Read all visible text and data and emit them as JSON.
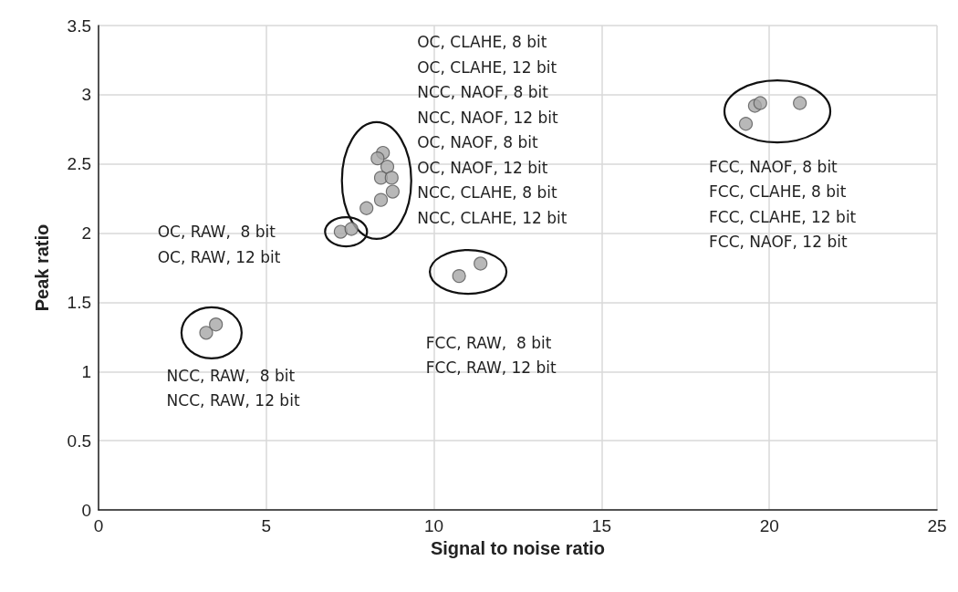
{
  "chart_data": {
    "type": "scatter",
    "xlabel": "Signal to noise ratio",
    "ylabel": "Peak ratio",
    "x": [
      3.21,
      3.5,
      7.22,
      7.54,
      8.48,
      8.32,
      8.61,
      8.42,
      8.74,
      8.77,
      8.42,
      7.99,
      10.75,
      11.39,
      19.3,
      19.57,
      19.73,
      20.91
    ],
    "values": [
      1.28,
      1.34,
      2.01,
      2.03,
      2.58,
      2.54,
      2.48,
      2.4,
      2.4,
      2.3,
      2.24,
      2.18,
      1.69,
      1.78,
      2.79,
      2.92,
      2.94,
      2.94
    ],
    "color": "#a6a6a6",
    "marker": "circle",
    "xlim": [
      0,
      25
    ],
    "xticks": [
      0,
      5,
      10,
      15,
      20,
      25
    ],
    "ylim": [
      0,
      3.5
    ],
    "yticks": [
      0,
      0.5,
      1,
      1.5,
      2,
      2.5,
      3,
      3.5
    ],
    "grid": true,
    "annotations": [
      "OC, CLAHE, 8 bit\nOC, CLAHE, 12 bit\nNCC, NAOF, 8 bit\nNCC, NAOF, 12 bit\nOC, NAOF, 8 bit\nOC, NAOF, 12 bit\nNCC, CLAHE, 8 bit\nNCC, CLAHE, 12 bit",
      "FCC, NAOF, 8 bit\nFCC, CLAHE, 8 bit\nFCC, CLAHE, 12 bit\nFCC, NAOF, 12 bit",
      "OC, RAW,  8 bit\nOC, RAW, 12 bit",
      "NCC, RAW,  8 bit\nNCC, RAW, 12 bit",
      "FCC, RAW,  8 bit\nFCC, RAW, 12 bit"
    ]
  }
}
